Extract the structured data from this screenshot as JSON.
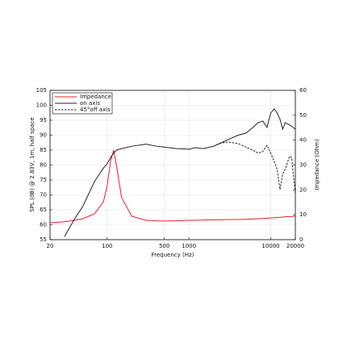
{
  "chart_data": {
    "type": "line",
    "xlabel": "Frequency (Hz)",
    "ylabel": "SPL (dB) @ 2.83V, 1m, half space",
    "y2label": "Impedance (Ohm)",
    "xscale": "log",
    "xlim": [
      20,
      20000
    ],
    "xticks": [
      20,
      100,
      500,
      1000,
      10000,
      20000
    ],
    "ylim": [
      55,
      105
    ],
    "yticks": [
      55,
      60,
      65,
      70,
      75,
      80,
      85,
      90,
      95,
      100,
      105
    ],
    "y2lim": [
      0,
      60
    ],
    "y2ticks": [
      0,
      10,
      20,
      30,
      40,
      50,
      60
    ],
    "grid": true,
    "legend": "upper left",
    "x": [
      20,
      30,
      40,
      50,
      70,
      90,
      100,
      110,
      120,
      130,
      150,
      200,
      300,
      400,
      500,
      700,
      1000,
      1200,
      1500,
      2000,
      2500,
      3000,
      4000,
      5000,
      6000,
      7000,
      8000,
      9000,
      10000,
      11000,
      12000,
      13000,
      14000,
      15000,
      17000,
      18000,
      20000
    ],
    "series": [
      {
        "name": "Impedance",
        "color": "#e8202a",
        "style": "solid",
        "axis": "y2",
        "values": [
          6.8,
          7.2,
          7.8,
          8.4,
          10.4,
          15.2,
          21.7,
          31.5,
          36,
          29.8,
          16.9,
          9.4,
          7.8,
          7.6,
          7.5,
          7.6,
          7.8,
          7.8,
          7.9,
          8,
          8,
          8.1,
          8.1,
          8.2,
          8.3,
          8.4,
          8.5,
          8.6,
          8.7,
          8.8,
          8.9,
          9,
          9.1,
          9.2,
          9.3,
          9.3,
          9.4
        ]
      },
      {
        "name": "on axis",
        "color": "#222222",
        "style": "solid",
        "values": [
          null,
          56,
          62,
          66,
          74.5,
          79,
          80.4,
          82.5,
          84,
          85,
          85.5,
          86.3,
          87,
          86.3,
          86,
          85.5,
          85.3,
          85.8,
          85.5,
          86.3,
          87.5,
          88.5,
          90,
          90.7,
          92.5,
          94.2,
          94.7,
          92.6,
          97.4,
          98.8,
          97.4,
          95.3,
          92,
          94.2,
          93.4,
          93,
          92
        ]
      },
      {
        "name": "45°off axis",
        "color": "#222222",
        "style": "dashed",
        "values": [
          null,
          null,
          null,
          null,
          null,
          null,
          null,
          null,
          null,
          null,
          null,
          null,
          null,
          null,
          null,
          null,
          null,
          null,
          null,
          86.3,
          87.4,
          87.7,
          87.2,
          86,
          85,
          84,
          84.5,
          86.6,
          84,
          81.2,
          78.5,
          71.8,
          77,
          78.5,
          83,
          82.5,
          70.4
        ]
      }
    ]
  }
}
